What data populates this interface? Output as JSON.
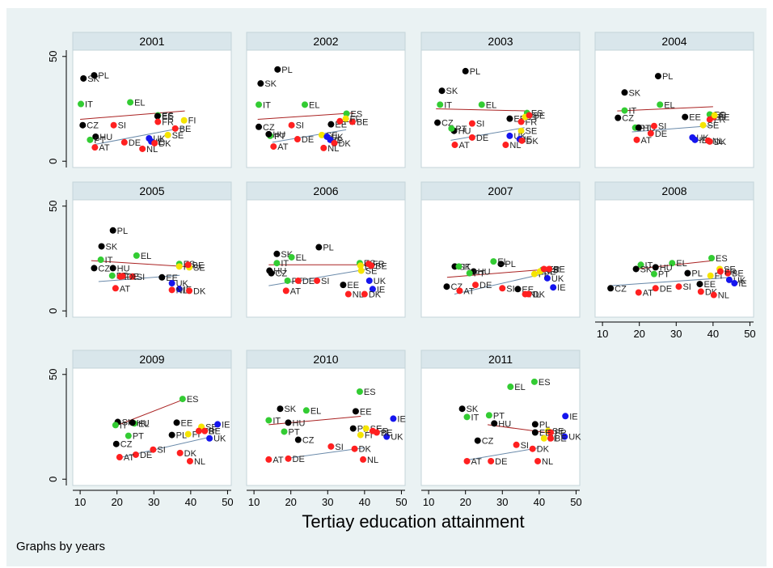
{
  "chart_data": [
    {
      "type": "scatter",
      "title": "2001",
      "labels": [
        "SK",
        "PL",
        "IT",
        "EL",
        "CZ",
        "SI",
        "HU",
        "PT",
        "AT",
        "DE",
        "NL",
        "ES",
        "EE",
        "FR",
        "FI",
        "BE",
        "SE",
        "UK",
        "IE",
        "DK"
      ],
      "x": [
        10.9,
        13.8,
        10.2,
        23.6,
        10.7,
        19.1,
        14.2,
        12.7,
        14,
        22,
        26.9,
        31.1,
        31,
        31.1,
        38.2,
        35.8,
        33.8,
        28.7,
        29.3,
        30.2
      ],
      "values": [
        39.5,
        41,
        27.3,
        28.1,
        17.2,
        17.2,
        11.7,
        10.2,
        6.6,
        9,
        5.9,
        21.9,
        21.5,
        18.8,
        19.5,
        15.6,
        12.5,
        10.9,
        9.4,
        8.6
      ],
      "colors": [
        "#000000",
        "#000000",
        "#33cc33",
        "#33cc33",
        "#000000",
        "#ff2020",
        "#000000",
        "#33cc33",
        "#ff2020",
        "#ff2020",
        "#ff2020",
        "#33cc33",
        "#000000",
        "#ff2020",
        "#f5e400",
        "#ff2020",
        "#f5e400",
        "#1515ee",
        "#1515ee",
        "#ff2020"
      ],
      "fits": [
        {
          "color": "#aa2222",
          "x": [
            10,
            38.4
          ],
          "values": [
            20,
            24
          ]
        },
        {
          "color": "#6a8aaa",
          "x": [
            14,
            38
          ],
          "values": [
            8,
            16
          ]
        }
      ]
    },
    {
      "type": "scatter",
      "title": "2002",
      "labels": [
        "PL",
        "SK",
        "IT",
        "EL",
        "CZ",
        "SI",
        "EE",
        "ES",
        "FR",
        "BE",
        "PT",
        "HU",
        "AT",
        "DE",
        "SE",
        "UK",
        "IE",
        "DK",
        "NL",
        "FI"
      ],
      "x": [
        16.4,
        11.8,
        11.3,
        23.8,
        11.3,
        20.2,
        30.9,
        35.1,
        33.3,
        36.7,
        14.4,
        14,
        15.3,
        21.8,
        28.4,
        29.8,
        30.7,
        31.8,
        28.9,
        34.9
      ],
      "values": [
        43.8,
        37.1,
        27,
        27,
        16.4,
        17.2,
        17.6,
        22.7,
        19.1,
        18.8,
        12.1,
        12.9,
        7,
        10.5,
        12.5,
        11.7,
        10.2,
        8.6,
        6.3,
        20.3
      ],
      "colors": [
        "#000000",
        "#000000",
        "#33cc33",
        "#33cc33",
        "#000000",
        "#ff2020",
        "#000000",
        "#33cc33",
        "#ff2020",
        "#ff2020",
        "#33cc33",
        "#000000",
        "#ff2020",
        "#ff2020",
        "#f5e400",
        "#1515ee",
        "#1515ee",
        "#ff2020",
        "#ff2020",
        "#f5e400"
      ],
      "fits": [
        {
          "color": "#aa2222",
          "x": [
            11,
            37
          ],
          "values": [
            20,
            23
          ]
        },
        {
          "color": "#6a8aaa",
          "x": [
            15,
            35
          ],
          "values": [
            9,
            15
          ]
        }
      ]
    },
    {
      "type": "scatter",
      "title": "2003",
      "labels": [
        "PL",
        "SK",
        "IT",
        "EL",
        "CZ",
        "SI",
        "HU",
        "PT",
        "EE",
        "ES",
        "FR",
        "SE",
        "AT",
        "DE",
        "UK",
        "NL",
        "IE",
        "DK",
        "FI",
        "BE"
      ],
      "x": [
        20,
        13.6,
        13.1,
        24.4,
        12.4,
        21.8,
        16.9,
        16.2,
        32,
        36.7,
        35.1,
        35.1,
        17.1,
        21.8,
        32,
        30.9,
        34.7,
        35.3,
        36.2,
        37.3
      ],
      "values": [
        43,
        33.6,
        27,
        27,
        18.4,
        18,
        14.5,
        15.6,
        20.3,
        23,
        18.8,
        14.5,
        7.8,
        11.3,
        12.1,
        7.8,
        10.5,
        9.8,
        21.1,
        21.9
      ],
      "colors": [
        "#000000",
        "#000000",
        "#33cc33",
        "#33cc33",
        "#000000",
        "#ff2020",
        "#000000",
        "#33cc33",
        "#000000",
        "#33cc33",
        "#ff2020",
        "#f5e400",
        "#ff2020",
        "#ff2020",
        "#1515ee",
        "#ff2020",
        "#1515ee",
        "#ff2020",
        "#f5e400",
        "#ff2020"
      ],
      "fits": [
        {
          "color": "#aa2222",
          "x": [
            12,
            37
          ],
          "values": [
            25,
            24
          ]
        },
        {
          "color": "#6a8aaa",
          "x": [
            16,
            36
          ],
          "values": [
            10,
            16
          ]
        }
      ]
    },
    {
      "type": "scatter",
      "title": "2004",
      "labels": [
        "PL",
        "SK",
        "IT",
        "EL",
        "CZ",
        "EE",
        "ES",
        "FR",
        "BE",
        "FI",
        "SE",
        "PT",
        "HU",
        "SI",
        "AT",
        "DE",
        "UK",
        "IE",
        "DK",
        "NL"
      ],
      "x": [
        25.1,
        16,
        16,
        25.6,
        14.2,
        32.4,
        39.1,
        39.1,
        40.2,
        40.4,
        37.3,
        18.9,
        19.8,
        24,
        19.3,
        23.1,
        34.4,
        35.1,
        39.1,
        38.7
      ],
      "values": [
        40.6,
        32.8,
        24.2,
        27,
        20.7,
        21.1,
        22.3,
        19.9,
        21.1,
        21.9,
        17.2,
        16,
        16,
        16.8,
        10.2,
        13.3,
        11.3,
        10.2,
        9.4,
        9.8
      ],
      "colors": [
        "#000000",
        "#000000",
        "#33cc33",
        "#33cc33",
        "#000000",
        "#000000",
        "#33cc33",
        "#ff2020",
        "#ff2020",
        "#f5e400",
        "#f5e400",
        "#33cc33",
        "#000000",
        "#ff2020",
        "#ff2020",
        "#ff2020",
        "#1515ee",
        "#1515ee",
        "#ff2020",
        "#ff2020"
      ],
      "fits": [
        {
          "color": "#aa2222",
          "x": [
            14,
            40
          ],
          "values": [
            24,
            26
          ]
        },
        {
          "color": "#6a8aaa",
          "x": [
            18,
            40
          ],
          "values": [
            14,
            17
          ]
        }
      ]
    },
    {
      "type": "scatter",
      "title": "2005",
      "labels": [
        "PL",
        "SK",
        "IT",
        "EL",
        "CZ",
        "HU",
        "PT",
        "FR",
        "SI",
        "EE",
        "AT",
        "UK",
        "IE",
        "NL",
        "DK",
        "ES",
        "FI",
        "SE",
        "BE",
        "DE"
      ],
      "x": [
        18.9,
        15.8,
        15.6,
        25.3,
        13.8,
        18.9,
        18.7,
        20.9,
        24.2,
        32.2,
        19.6,
        34.9,
        36.9,
        34.9,
        39.6,
        36.9,
        36.9,
        39.6,
        39.3,
        21.5
      ],
      "values": [
        38.4,
        30.8,
        24.4,
        26.4,
        20.4,
        20.4,
        16.8,
        16.4,
        16.4,
        16,
        10.8,
        13.2,
        10.4,
        10,
        9.6,
        22.4,
        21.2,
        20.8,
        22,
        16.6
      ],
      "colors": [
        "#000000",
        "#000000",
        "#33cc33",
        "#33cc33",
        "#000000",
        "#000000",
        "#33cc33",
        "#ff2020",
        "#ff2020",
        "#000000",
        "#ff2020",
        "#1515ee",
        "#1515ee",
        "#ff2020",
        "#ff2020",
        "#33cc33",
        "#f5e400",
        "#f5e400",
        "#ff2020",
        "#ff2020"
      ],
      "fits": [
        {
          "color": "#aa2222",
          "x": [
            13,
            40
          ],
          "values": [
            24,
            21
          ]
        },
        {
          "color": "#6a8aaa",
          "x": [
            15,
            37
          ],
          "values": [
            14,
            17
          ]
        }
      ]
    },
    {
      "type": "scatter",
      "title": "2006",
      "labels": [
        "PL",
        "SK",
        "EL",
        "IT",
        "HU",
        "CZ",
        "PT",
        "DE",
        "SI",
        "EE",
        "AT",
        "UK",
        "IE",
        "NL",
        "DK",
        "ES",
        "FI",
        "SE",
        "FR",
        "BE"
      ],
      "x": [
        27.6,
        16.2,
        20.2,
        16.2,
        14.2,
        14.7,
        19.1,
        22,
        27.1,
        34.2,
        18.7,
        41.3,
        42.2,
        35.6,
        40,
        38.7,
        38.9,
        39.1,
        41.1,
        41.8
      ],
      "values": [
        30.4,
        27.2,
        25.6,
        22.8,
        19.2,
        18,
        14.4,
        14.4,
        14.4,
        12.4,
        9.6,
        14.4,
        10.4,
        8,
        8,
        22.8,
        21.6,
        19.2,
        22.4,
        21.6
      ],
      "colors": [
        "#000000",
        "#000000",
        "#33cc33",
        "#33cc33",
        "#000000",
        "#000000",
        "#33cc33",
        "#ff2020",
        "#ff2020",
        "#000000",
        "#ff2020",
        "#1515ee",
        "#1515ee",
        "#ff2020",
        "#ff2020",
        "#33cc33",
        "#f5e400",
        "#f5e400",
        "#ff2020",
        "#ff2020"
      ],
      "fits": [
        {
          "color": "#aa2222",
          "x": [
            14,
            42
          ],
          "values": [
            22,
            22
          ]
        },
        {
          "color": "#6a8aaa",
          "x": [
            14,
            41
          ],
          "values": [
            12,
            20
          ]
        }
      ]
    },
    {
      "type": "scatter",
      "title": "2007",
      "labels": [
        "PL",
        "EL",
        "SK",
        "IT",
        "HU",
        "PT",
        "CZ",
        "DE",
        "SI",
        "EE",
        "AT",
        "UK",
        "IE",
        "NL",
        "DK",
        "ES",
        "FI",
        "SE",
        "FR",
        "BE"
      ],
      "x": [
        29.6,
        27.6,
        17.1,
        18.2,
        22.2,
        21.1,
        14.9,
        22.7,
        30,
        34.2,
        18.4,
        42.2,
        43.8,
        36.2,
        37.1,
        40.9,
        38.7,
        40.2,
        41.3,
        42.7
      ],
      "values": [
        22.4,
        23.6,
        21.2,
        21.2,
        18.8,
        18,
        11.6,
        12.4,
        10.8,
        10.4,
        9.6,
        15.6,
        11.2,
        8,
        8,
        19.6,
        17.6,
        18.8,
        20,
        20
      ],
      "colors": [
        "#000000",
        "#33cc33",
        "#000000",
        "#33cc33",
        "#000000",
        "#33cc33",
        "#000000",
        "#ff2020",
        "#ff2020",
        "#000000",
        "#ff2020",
        "#1515ee",
        "#1515ee",
        "#ff2020",
        "#ff2020",
        "#33cc33",
        "#f5e400",
        "#f5e400",
        "#ff2020",
        "#ff2020"
      ],
      "fits": [
        {
          "color": "#aa2222",
          "x": [
            15,
            43
          ],
          "values": [
            16,
            20
          ]
        },
        {
          "color": "#6a8aaa",
          "x": [
            17,
            42
          ],
          "values": [
            8,
            18
          ]
        }
      ]
    },
    {
      "type": "scatter",
      "title": "2008",
      "labels": [
        "ES",
        "EL",
        "IT",
        "HU",
        "SK",
        "PT",
        "PL",
        "FI",
        "SE",
        "BE",
        "FR",
        "UK",
        "IE",
        "EE",
        "CZ",
        "DE",
        "SI",
        "AT",
        "DK",
        "NL"
      ],
      "x": [
        39.6,
        28.9,
        20.4,
        24.4,
        19.1,
        24,
        33.1,
        39.3,
        41.8,
        44,
        42,
        44.4,
        45.8,
        36.4,
        12.2,
        24.4,
        30.7,
        19.8,
        36.7,
        40.2
      ],
      "values": [
        25.2,
        22.8,
        22,
        20.8,
        20,
        17.6,
        18,
        16.8,
        20,
        18,
        18.8,
        14.8,
        13.2,
        12.8,
        10.8,
        10.8,
        11.6,
        8.8,
        9.2,
        7.6
      ],
      "colors": [
        "#33cc33",
        "#33cc33",
        "#33cc33",
        "#000000",
        "#000000",
        "#33cc33",
        "#000000",
        "#f5e400",
        "#f5e400",
        "#ff2020",
        "#ff2020",
        "#1515ee",
        "#1515ee",
        "#000000",
        "#000000",
        "#ff2020",
        "#ff2020",
        "#ff2020",
        "#ff2020",
        "#ff2020"
      ],
      "fits": [
        {
          "color": "#aa2222",
          "x": [
            19,
            40
          ],
          "values": [
            20,
            24
          ]
        },
        {
          "color": "#6a8aaa",
          "x": [
            12,
            45
          ],
          "values": [
            12,
            16
          ]
        }
      ]
    },
    {
      "type": "scatter",
      "title": "2009",
      "labels": [
        "ES",
        "SK",
        "IT",
        "EL",
        "HU",
        "EE",
        "PT",
        "PL",
        "CZ",
        "SE",
        "FI",
        "IE",
        "UK",
        "FR",
        "BE",
        "SI",
        "DE",
        "AT",
        "DK",
        "NL"
      ],
      "x": [
        37.8,
        20.2,
        19.6,
        24.7,
        24.2,
        36.2,
        23.1,
        34.9,
        19.8,
        42.9,
        39.3,
        47.3,
        45.1,
        42.2,
        43.8,
        29.8,
        25.1,
        20.7,
        37.1,
        39.8
      ],
      "values": [
        38.3,
        27.3,
        25.8,
        26.6,
        27,
        27,
        20.7,
        21.1,
        16.8,
        25,
        21.5,
        26.2,
        19.5,
        23,
        23,
        14.1,
        11.7,
        10.5,
        12.5,
        8.6
      ],
      "colors": [
        "#33cc33",
        "#000000",
        "#33cc33",
        "#33cc33",
        "#000000",
        "#000000",
        "#33cc33",
        "#000000",
        "#000000",
        "#f5e400",
        "#f5e400",
        "#1515ee",
        "#1515ee",
        "#ff2020",
        "#ff2020",
        "#ff2020",
        "#ff2020",
        "#ff2020",
        "#ff2020",
        "#ff2020"
      ],
      "fits": [
        {
          "color": "#aa2222",
          "x": [
            19,
            38
          ],
          "values": [
            25,
            38
          ]
        },
        {
          "color": "#6a8aaa",
          "x": [
            20,
            45
          ],
          "values": [
            10,
            20
          ]
        }
      ]
    },
    {
      "type": "scatter",
      "title": "2010",
      "labels": [
        "ES",
        "SK",
        "EL",
        "EE",
        "IT",
        "HU",
        "PT",
        "PL",
        "CZ",
        "IE",
        "UK",
        "FI",
        "SE",
        "FR",
        "BE",
        "SI",
        "DK",
        "DE",
        "AT",
        "NL"
      ],
      "x": [
        38.7,
        17.1,
        24.2,
        37.6,
        14,
        19.3,
        18.2,
        36.9,
        22,
        47.8,
        46,
        38.9,
        40.4,
        42.2,
        43.3,
        30.9,
        37.3,
        19.3,
        14,
        39.6
      ],
      "values": [
        41.8,
        33.6,
        32.8,
        32.4,
        28.1,
        27,
        22.7,
        24.2,
        18.8,
        28.9,
        20.3,
        21.1,
        24.2,
        23,
        22.3,
        15.6,
        14.5,
        9.8,
        9.4,
        9.4
      ],
      "colors": [
        "#33cc33",
        "#000000",
        "#33cc33",
        "#000000",
        "#33cc33",
        "#000000",
        "#33cc33",
        "#000000",
        "#000000",
        "#1515ee",
        "#1515ee",
        "#f5e400",
        "#f5e400",
        "#ff2020",
        "#ff2020",
        "#ff2020",
        "#ff2020",
        "#ff2020",
        "#ff2020",
        "#ff2020"
      ],
      "fits": [
        {
          "color": "#aa2222",
          "x": [
            14,
            39
          ],
          "values": [
            26,
            30
          ]
        },
        {
          "color": "#6a8aaa",
          "x": [
            19,
            40
          ],
          "values": [
            10,
            15
          ]
        }
      ]
    },
    {
      "type": "scatter",
      "title": "2011",
      "labels": [
        "ES",
        "EL",
        "SK",
        "PT",
        "IT",
        "IE",
        "HU",
        "PL",
        "CZ",
        "SE",
        "FR",
        "EE",
        "UK",
        "FI",
        "BE",
        "SI",
        "DK",
        "AT",
        "DE",
        "NL"
      ],
      "x": [
        38.7,
        32.2,
        19.1,
        26.4,
        20.4,
        47.1,
        27.8,
        38.9,
        23.3,
        42.4,
        43.1,
        38.9,
        46.9,
        41.3,
        43.1,
        33.8,
        38.2,
        20.4,
        26.9,
        39.6
      ],
      "values": [
        46.5,
        44.1,
        33.6,
        30.5,
        29.7,
        30.1,
        26.6,
        26.2,
        18.4,
        23,
        22.3,
        22.3,
        20.3,
        19.5,
        19.5,
        16.4,
        14.5,
        8.6,
        8.6,
        8.6
      ],
      "colors": [
        "#33cc33",
        "#33cc33",
        "#000000",
        "#33cc33",
        "#33cc33",
        "#1515ee",
        "#000000",
        "#000000",
        "#000000",
        "#f5e400",
        "#ff2020",
        "#000000",
        "#1515ee",
        "#f5e400",
        "#ff2020",
        "#ff2020",
        "#ff2020",
        "#ff2020",
        "#ff2020",
        "#ff2020"
      ],
      "fits": [
        {
          "color": "#aa2222",
          "x": [
            26,
            43
          ],
          "values": [
            26,
            22
          ]
        },
        {
          "color": "#6a8aaa",
          "x": [
            20,
            40
          ],
          "values": [
            9,
            15
          ]
        }
      ]
    }
  ],
  "axes": {
    "xlim": [
      8,
      51
    ],
    "ylim": [
      -3,
      53
    ],
    "xticks": [
      10,
      20,
      30,
      40,
      50
    ],
    "yticks": [
      0,
      50
    ]
  },
  "xlabel": "Tertiay education attainment",
  "note": "Graphs by years"
}
